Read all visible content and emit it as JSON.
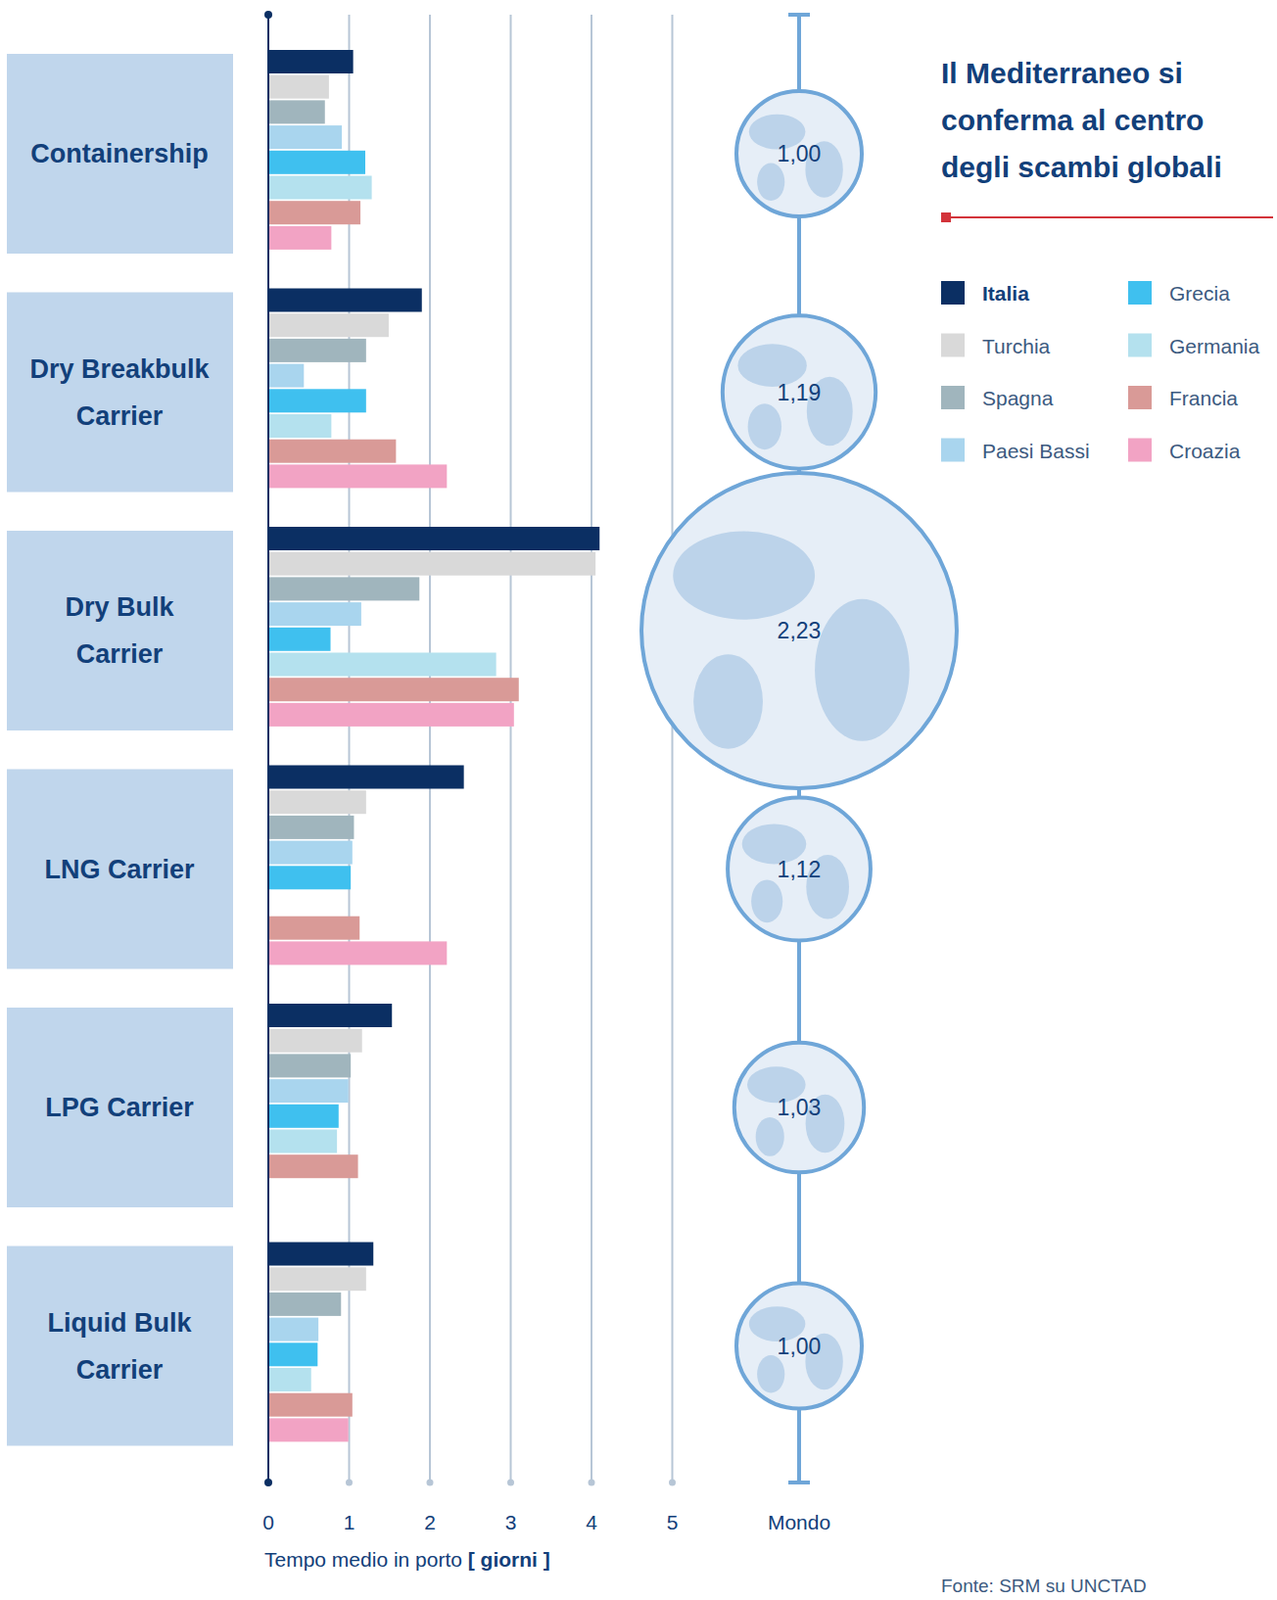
{
  "chart_data": {
    "type": "bar",
    "orientation": "horizontal",
    "title": "Il Mediterraneo si conferma al centro degli scambi globali",
    "x_label": "Tempo medio in porto [ giorni ]",
    "source": "Fonte: SRM su UNCTAD",
    "categories": [
      "Containership",
      "Dry Breakbulk Carrier",
      "Dry Bulk Carrier",
      "LNG Carrier",
      "LPG Carrier",
      "Liquid Bulk Carrier"
    ],
    "series": [
      {
        "name": "Italia",
        "color": "#0b2f63",
        "values": [
          1.05,
          1.9,
          4.1,
          2.42,
          1.53,
          1.3
        ]
      },
      {
        "name": "Turchia",
        "color": "#d9d9d9",
        "values": [
          0.75,
          1.49,
          4.05,
          1.21,
          1.16,
          1.21
        ]
      },
      {
        "name": "Spagna",
        "color": "#a0b5bd",
        "values": [
          0.7,
          1.21,
          1.87,
          1.06,
          1.02,
          0.9
        ]
      },
      {
        "name": "Paesi Bassi",
        "color": "#a9d5ee",
        "values": [
          0.91,
          0.44,
          1.15,
          1.04,
          0.99,
          0.62
        ]
      },
      {
        "name": "Grecia",
        "color": "#3fc0ef",
        "values": [
          1.2,
          1.21,
          0.77,
          1.02,
          0.87,
          0.61
        ]
      },
      {
        "name": "Germania",
        "color": "#b4e1ee",
        "values": [
          1.28,
          0.78,
          2.82,
          null,
          0.85,
          0.53
        ]
      },
      {
        "name": "Francia",
        "color": "#d99a97",
        "values": [
          1.14,
          1.58,
          3.1,
          1.13,
          1.11,
          1.04
        ]
      },
      {
        "name": "Croazia",
        "color": "#f2a3c4",
        "values": [
          0.78,
          2.21,
          3.04,
          2.21,
          null,
          0.99
        ]
      }
    ],
    "xlim": [
      0,
      5
    ],
    "xticks": [
      0,
      1,
      2,
      3,
      4,
      5
    ],
    "grid": true,
    "legend": "top-right",
    "reference": {
      "name": "Mondo",
      "values": [
        1.0,
        1.19,
        2.23,
        1.12,
        1.03,
        1.0
      ],
      "value_labels": [
        "1,00",
        "1,19",
        "2,23",
        "1,12",
        "1,03",
        "1,00"
      ]
    }
  }
}
